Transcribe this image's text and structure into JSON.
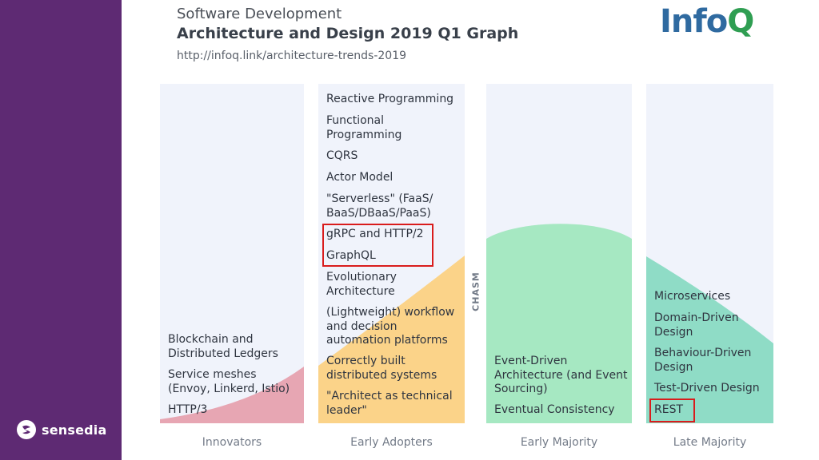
{
  "brand": {
    "sidebar_color": "#5e2a73",
    "logo_text": "sensedia"
  },
  "header": {
    "subtitle": "Software Development",
    "title": "Architecture and Design 2019 Q1 Graph",
    "url": "http://infoq.link/architecture-trends-2019",
    "logo": {
      "part1": "Info",
      "part2": "Q"
    }
  },
  "chasm_label": "CHASM",
  "columns": {
    "innovators": {
      "label": "Innovators",
      "items": [
        "Blockchain and\nDistributed Ledgers",
        "Service meshes\n(Envoy, Linkerd, Istio)",
        "HTTP/3"
      ]
    },
    "early_adopters": {
      "label": "Early Adopters",
      "items": [
        "Reactive Programming",
        "Functional\nProgramming",
        "CQRS",
        "Actor Model",
        "\"Serverless\" (FaaS/\nBaaS/DBaaS/PaaS)",
        "gRPC and HTTP/2",
        "GraphQL",
        "Evolutionary\nArchitecture",
        "(Lightweight) workflow\nand decision\nautomation platforms",
        "Correctly built\ndistributed systems",
        "\"Architect as technical\nleader\""
      ]
    },
    "early_majority": {
      "label": "Early Majority",
      "items": [
        "Event-Driven\nArchitecture (and Event\nSourcing)",
        "Eventual Consistency"
      ]
    },
    "late_majority": {
      "label": "Late Majority",
      "items": [
        "Microservices",
        "Domain-Driven\nDesign",
        "Behaviour-Driven\nDesign",
        "Test-Driven Design",
        "REST"
      ]
    }
  },
  "highlighted": [
    "gRPC and HTTP/2",
    "GraphQL",
    "REST"
  ],
  "colors": {
    "innovators": "#e7a6b3",
    "early_adopters": "#fbd389",
    "early_majority": "#a6e8c2",
    "late_majority": "#8fdcc6",
    "highlight": "#d91c1c"
  }
}
